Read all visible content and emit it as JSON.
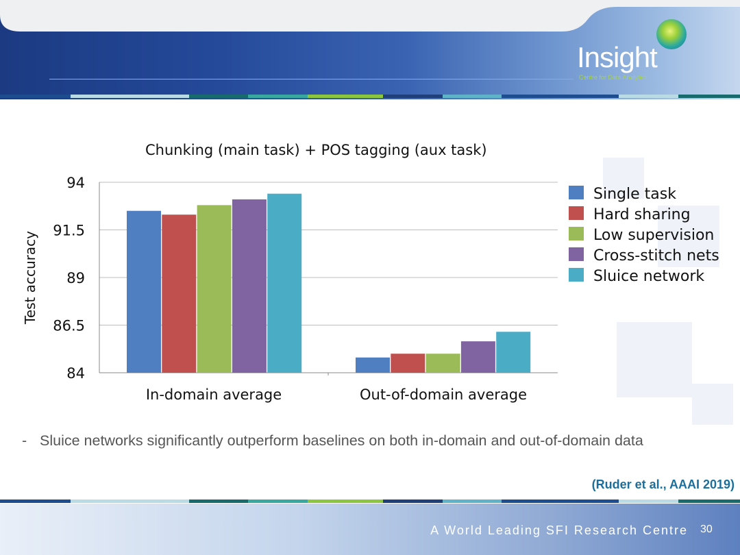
{
  "header": {
    "logo_text": "Insight",
    "logo_subtitle": "Centre for Data Analytics",
    "colors": {
      "banner": "#254a9a",
      "accent_line": "#9cc23c"
    }
  },
  "stripe_colors": [
    "#1d4c8f",
    "#b9dbe6",
    "#176b6c",
    "#39a9a0",
    "#8cc63e",
    "#1f3f7a",
    "#5fb3c9",
    "#1d4c8f"
  ],
  "chart_data": {
    "type": "bar",
    "title": "Chunking (main task) + POS tagging (aux task)",
    "xlabel": "",
    "ylabel": "Test accuracy",
    "ylim": [
      84,
      94
    ],
    "yticks": [
      84,
      86.5,
      89,
      91.5,
      94
    ],
    "ytick_labels": [
      "84",
      "86.5",
      "89",
      "91.5",
      "94"
    ],
    "grid": true,
    "legend_position": "right",
    "categories": [
      "In-domain average",
      "Out-of-domain average"
    ],
    "series": [
      {
        "name": "Single task",
        "color": "#4f7fc0",
        "values": [
          92.5,
          84.8
        ]
      },
      {
        "name": "Hard sharing",
        "color": "#c0504d",
        "values": [
          92.3,
          85.0
        ]
      },
      {
        "name": "Low supervision",
        "color": "#9bbb59",
        "values": [
          92.8,
          85.0
        ]
      },
      {
        "name": "Cross-stitch nets",
        "color": "#8064a2",
        "values": [
          93.1,
          85.65
        ]
      },
      {
        "name": "Sluice network",
        "color": "#4bacc6",
        "values": [
          93.4,
          86.15
        ]
      }
    ]
  },
  "bullet": {
    "dash": "-",
    "text": "Sluice networks significantly outperform baselines on both in-domain and out-of-domain data"
  },
  "citation": "(Ruder et al., AAAI 2019)",
  "footer": {
    "text": "A World Leading SFI Research Centre",
    "page_number": "30"
  }
}
